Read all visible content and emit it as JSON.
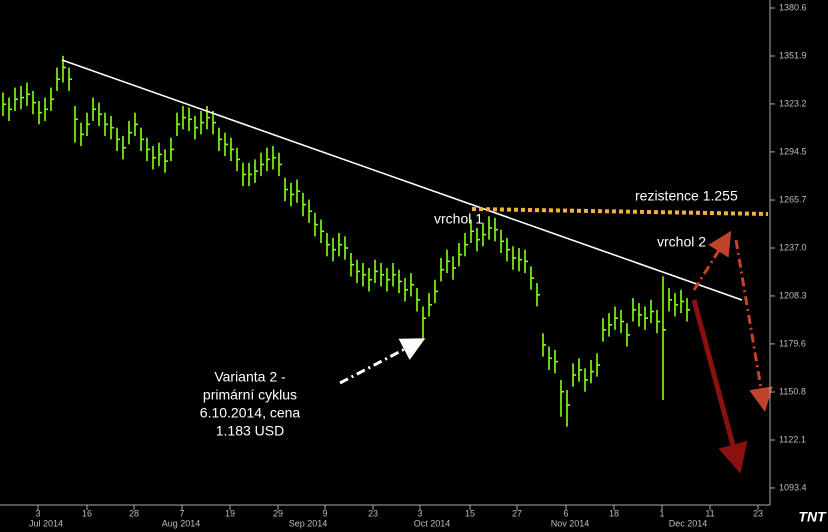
{
  "chart_data": {
    "type": "ohlc",
    "color": "#88ff11",
    "ylim": [
      1083.2,
      1385.4
    ],
    "yticks": [
      1380.6,
      1351.9,
      1323.2,
      1294.5,
      1265.7,
      {
        "value": 1237,
        "label": "1237.0"
      },
      1208.3,
      1179.6,
      1150.8,
      1122.1,
      1093.4
    ],
    "day_labels": [
      "3",
      "16",
      "28",
      "7",
      "19",
      "29",
      "9",
      "23",
      "3",
      "15",
      "27",
      "6",
      "18",
      "1",
      "11",
      "23"
    ],
    "month_labels": [
      "Jul 2014",
      "Aug 2014",
      "Sep 2014",
      "Oct 2014",
      "Nov 2014",
      "Dec 2014"
    ],
    "high": [
      1330,
      1327,
      1333,
      1334,
      1336,
      1331,
      1325,
      1327,
      1333,
      1345,
      1352,
      1345,
      1322,
      1312,
      1318,
      1327,
      1324,
      1318,
      1316,
      1309,
      1304,
      1313,
      1318,
      1309,
      1303,
      1298,
      1300,
      1296,
      1303,
      1318,
      1322,
      1321,
      1316,
      1319,
      1322,
      1319,
      1309,
      1306,
      1303,
      1297,
      1288,
      1288,
      1290,
      1294,
      1297,
      1298,
      1294,
      1279,
      1276,
      1278,
      1270,
      1266,
      1258,
      1254,
      1246,
      1243,
      1246,
      1244,
      1234,
      1230,
      1228,
      1225,
      1230,
      1228,
      1225,
      1228,
      1224,
      1219,
      1222,
      1213,
      1202,
      1210,
      1218,
      1231,
      1236,
      1232,
      1240,
      1246,
      1254,
      1249,
      1252,
      1256,
      1255,
      1248,
      1243,
      1238,
      1237,
      1236,
      1226,
      1216,
      1186,
      1178,
      1176,
      1158,
      1152,
      1168,
      1171,
      1165,
      1170,
      1174,
      1195,
      1198,
      1202,
      1200,
      1192,
      1207,
      1204,
      1202,
      1206,
      1200,
      1220,
      1213,
      1210,
      1212,
      1207
    ],
    "low": [
      1316,
      1313,
      1319,
      1320,
      1322,
      1317,
      1311,
      1313,
      1319,
      1331,
      1336,
      1331,
      1300,
      1298,
      1304,
      1313,
      1310,
      1304,
      1302,
      1295,
      1290,
      1299,
      1304,
      1295,
      1289,
      1284,
      1286,
      1282,
      1289,
      1304,
      1308,
      1307,
      1302,
      1305,
      1308,
      1305,
      1295,
      1292,
      1289,
      1283,
      1274,
      1274,
      1276,
      1280,
      1283,
      1284,
      1280,
      1265,
      1262,
      1264,
      1256,
      1252,
      1244,
      1240,
      1232,
      1229,
      1232,
      1230,
      1220,
      1216,
      1214,
      1211,
      1216,
      1214,
      1211,
      1214,
      1210,
      1205,
      1208,
      1199,
      1183,
      1196,
      1204,
      1217,
      1222,
      1218,
      1226,
      1232,
      1240,
      1235,
      1238,
      1242,
      1241,
      1234,
      1229,
      1224,
      1223,
      1222,
      1212,
      1202,
      1172,
      1164,
      1162,
      1136,
      1130,
      1154,
      1157,
      1151,
      1156,
      1160,
      1181,
      1184,
      1188,
      1186,
      1178,
      1193,
      1190,
      1188,
      1192,
      1186,
      1146,
      1199,
      1196,
      1198,
      1193
    ],
    "close": [
      1323,
      1320,
      1326,
      1327,
      1329,
      1324,
      1318,
      1320,
      1326,
      1338,
      1345,
      1338,
      1314,
      1305,
      1311,
      1320,
      1317,
      1311,
      1309,
      1302,
      1297,
      1306,
      1311,
      1302,
      1296,
      1291,
      1293,
      1289,
      1296,
      1311,
      1315,
      1314,
      1309,
      1312,
      1315,
      1312,
      1302,
      1299,
      1296,
      1290,
      1281,
      1281,
      1283,
      1287,
      1290,
      1291,
      1287,
      1272,
      1269,
      1271,
      1263,
      1259,
      1251,
      1247,
      1239,
      1236,
      1239,
      1237,
      1227,
      1223,
      1221,
      1218,
      1223,
      1221,
      1218,
      1221,
      1217,
      1212,
      1215,
      1206,
      1195,
      1203,
      1211,
      1224,
      1229,
      1225,
      1233,
      1239,
      1247,
      1242,
      1245,
      1249,
      1248,
      1241,
      1236,
      1231,
      1230,
      1229,
      1219,
      1209,
      1179,
      1171,
      1169,
      1151,
      1143,
      1161,
      1164,
      1158,
      1163,
      1167,
      1188,
      1191,
      1195,
      1193,
      1185,
      1200,
      1197,
      1195,
      1199,
      1193,
      1188,
      1206,
      1203,
      1205,
      1200
    ],
    "annotations": {
      "resistance": "rezistence 1.255",
      "peak2": "vrchol 2",
      "peak1": "vrchol 1",
      "variant": [
        "Varianta 2 -",
        "primární cyklus",
        "6.10.2014, cena",
        "1.183 USD"
      ]
    },
    "logo": "TNT"
  }
}
